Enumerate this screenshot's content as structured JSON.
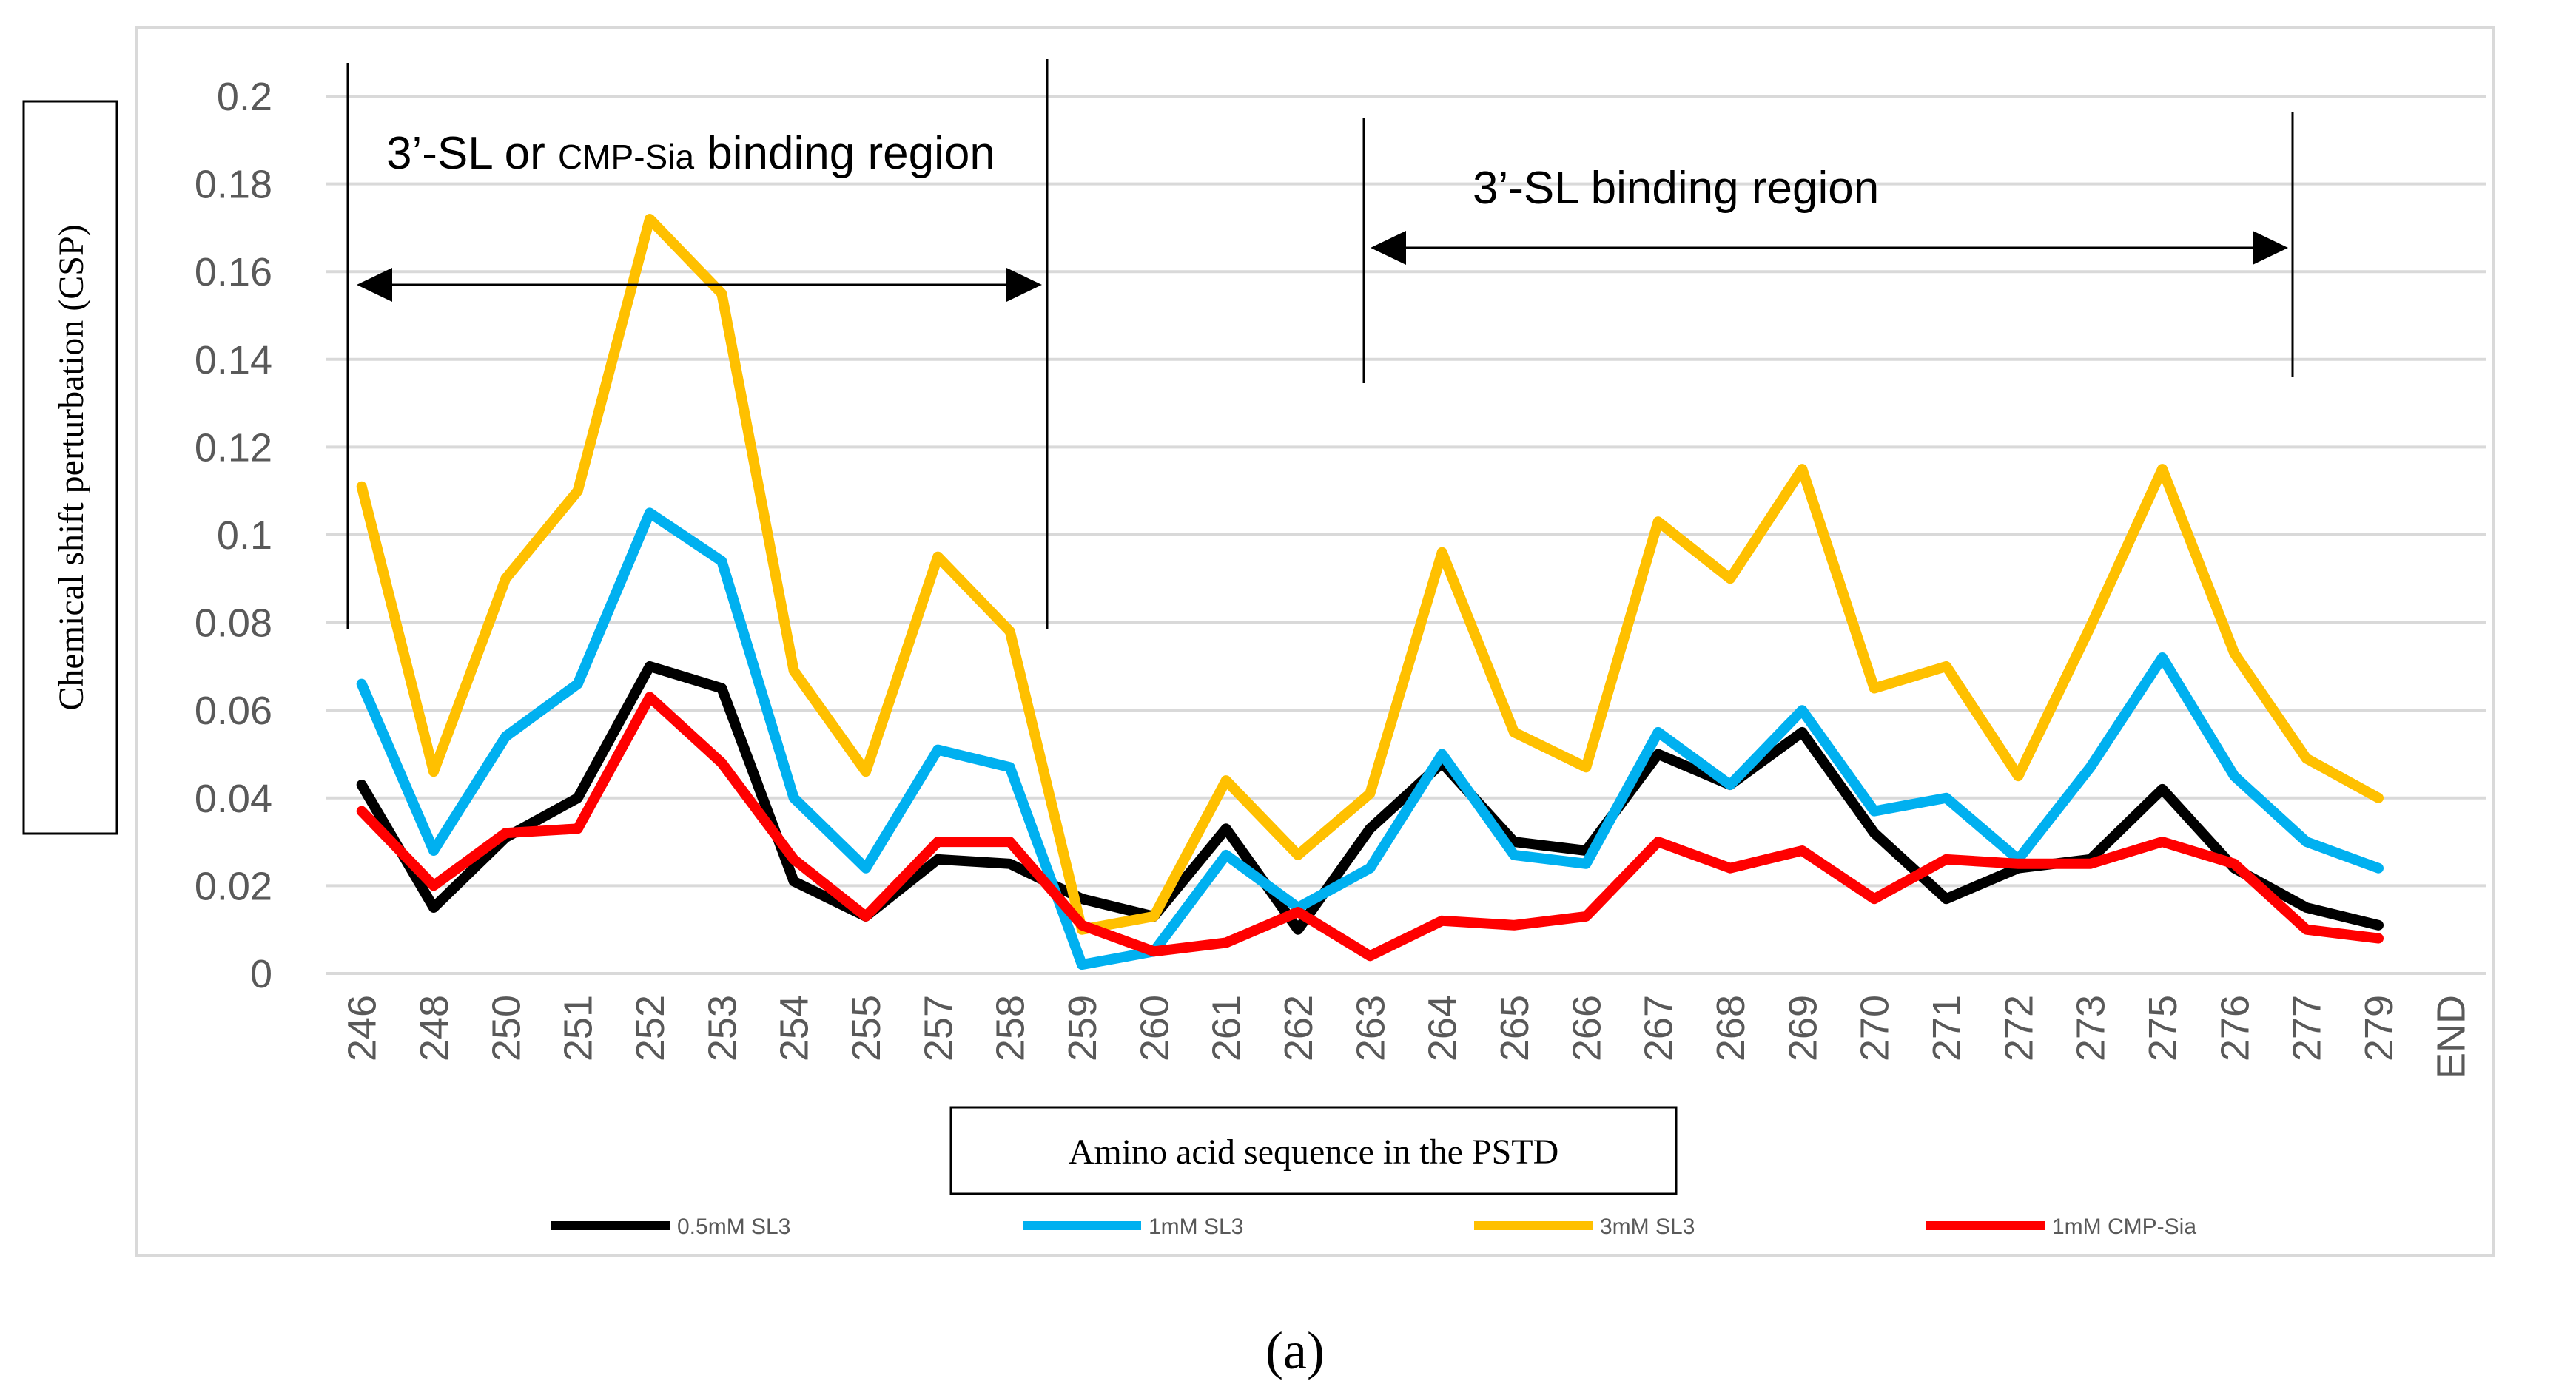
{
  "chart_data": {
    "type": "line",
    "categories": [
      "246",
      "248",
      "250",
      "251",
      "252",
      "253",
      "254",
      "255",
      "257",
      "258",
      "259",
      "260",
      "261",
      "262",
      "263",
      "264",
      "265",
      "266",
      "267",
      "268",
      "269",
      "270",
      "271",
      "272",
      "273",
      "275",
      "276",
      "277",
      "279",
      "END"
    ],
    "series": [
      {
        "name": "0.5mM SL3",
        "color": "#000000",
        "values": [
          0.043,
          0.015,
          0.031,
          0.04,
          0.07,
          0.065,
          0.021,
          0.013,
          0.026,
          0.025,
          0.017,
          0.013,
          0.033,
          0.01,
          0.033,
          0.048,
          0.03,
          0.028,
          0.05,
          0.043,
          0.055,
          0.032,
          0.017,
          0.024,
          0.026,
          0.042,
          0.024,
          0.015,
          0.011,
          null
        ]
      },
      {
        "name": "1mM SL3",
        "color": "#00b0f0",
        "values": [
          0.066,
          0.028,
          0.054,
          0.066,
          0.105,
          0.094,
          0.04,
          0.024,
          0.051,
          0.047,
          0.002,
          0.005,
          0.027,
          0.015,
          0.024,
          0.05,
          0.027,
          0.025,
          0.055,
          0.043,
          0.06,
          0.037,
          0.04,
          0.026,
          0.047,
          0.072,
          0.045,
          0.03,
          0.024,
          null
        ]
      },
      {
        "name": "3mM SL3",
        "color": "#ffc000",
        "values": [
          0.111,
          0.046,
          0.09,
          0.11,
          0.172,
          0.155,
          0.069,
          0.046,
          0.095,
          0.078,
          0.01,
          0.013,
          0.044,
          0.027,
          0.041,
          0.096,
          0.055,
          0.047,
          0.103,
          0.09,
          0.115,
          0.065,
          0.07,
          0.045,
          0.079,
          0.115,
          0.073,
          0.049,
          0.04,
          null
        ]
      },
      {
        "name": "1mM CMP-Sia",
        "color": "#ff0000",
        "values": [
          0.037,
          0.02,
          0.032,
          0.033,
          0.063,
          0.048,
          0.026,
          0.013,
          0.03,
          0.03,
          0.011,
          0.005,
          0.007,
          0.014,
          0.004,
          0.012,
          0.011,
          0.013,
          0.03,
          0.024,
          0.028,
          0.017,
          0.026,
          0.025,
          0.025,
          0.03,
          0.025,
          0.01,
          0.008,
          null
        ]
      }
    ],
    "yticks": [
      "0",
      "0.02",
      "0.04",
      "0.06",
      "0.08",
      "0.1",
      "0.12",
      "0.14",
      "0.16",
      "0.18",
      "0.2"
    ],
    "ylim": [
      0,
      0.2
    ],
    "xlabel": "Amino acid sequence in the PSTD",
    "ylabel": "Chemical shift perturbation (CSP)",
    "annotations": [
      {
        "text_a": "3’-SL or ",
        "text_b": "CMP-Sia",
        "text_c": " binding region",
        "from": "246",
        "to": "258"
      },
      {
        "text": "3’-SL binding region",
        "from": "263",
        "to": "277"
      }
    ],
    "grid": true,
    "legend": "bottom"
  },
  "caption": "(a)"
}
